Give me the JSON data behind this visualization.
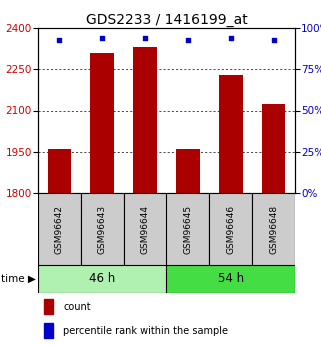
{
  "title": "GDS2233 / 1416199_at",
  "samples": [
    "GSM96642",
    "GSM96643",
    "GSM96644",
    "GSM96645",
    "GSM96646",
    "GSM96648"
  ],
  "counts": [
    1960,
    2310,
    2330,
    1960,
    2230,
    2125
  ],
  "percentiles": [
    93,
    94,
    94,
    93,
    94,
    93
  ],
  "groups": [
    {
      "label": "46 h",
      "indices": [
        0,
        1,
        2
      ],
      "color": "#b0f0b0"
    },
    {
      "label": "54 h",
      "indices": [
        3,
        4,
        5
      ],
      "color": "#44dd44"
    }
  ],
  "ylim_left": [
    1800,
    2400
  ],
  "yticks_left": [
    1800,
    1950,
    2100,
    2250,
    2400
  ],
  "ylim_right": [
    0,
    100
  ],
  "yticks_right": [
    0,
    25,
    50,
    75,
    100
  ],
  "bar_color": "#aa0000",
  "dot_color": "#0000cc",
  "bar_width": 0.55,
  "left_axis_color": "#cc0000",
  "right_axis_color": "#0000cc",
  "title_fontsize": 10,
  "tick_fontsize": 7.5,
  "legend_fontsize": 7,
  "sample_label_fontsize": 6.5,
  "group_label_fontsize": 8.5
}
